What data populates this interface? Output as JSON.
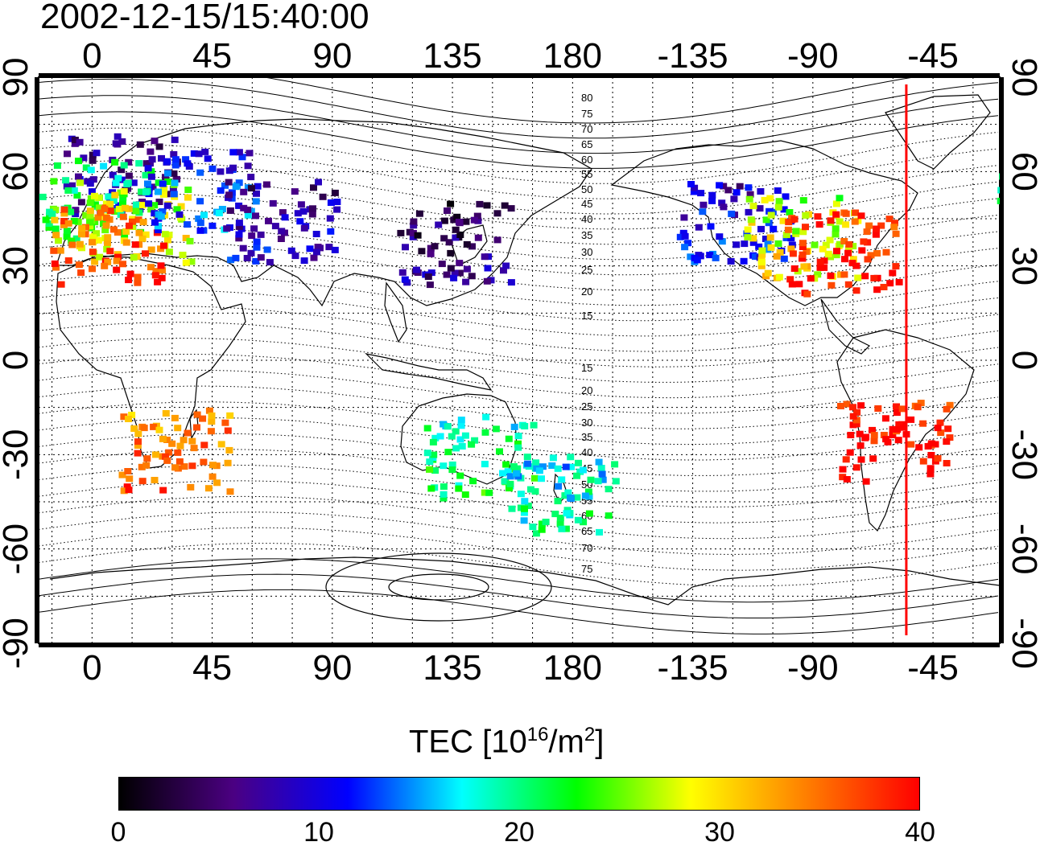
{
  "title": "2002-12-15/15:40:00",
  "map": {
    "top_lon_labels": [
      "0",
      "45",
      "90",
      "135",
      "180",
      "-135",
      "-90",
      "-45"
    ],
    "bottom_lon_labels": [
      "0",
      "45",
      "90",
      "135",
      "180",
      "-135",
      "-90",
      "-45"
    ],
    "lat_labels": [
      "90",
      "60",
      "30",
      "0",
      "-30",
      "-60",
      "-90"
    ],
    "magnetic_lat_labels_north": [
      "80",
      "75",
      "70",
      "65",
      "60",
      "55",
      "50",
      "45",
      "40",
      "35",
      "30",
      "25",
      "20",
      "15"
    ],
    "magnetic_lat_labels_south": [
      "15",
      "20",
      "25",
      "30",
      "35",
      "40",
      "45",
      "50",
      "55",
      "60",
      "65",
      "70",
      "75"
    ],
    "marker_line_lon": -55,
    "marker_line_color": "#ff0000"
  },
  "colorbar": {
    "label": "TEC  [10",
    "label_exp": "16",
    "label_unit": "/m",
    "label_unit_exp": "2",
    "label_close": "]",
    "ticks": [
      "0",
      "10",
      "20",
      "30",
      "40"
    ],
    "range": [
      0,
      40
    ],
    "colors": [
      "#000000",
      "#4b0082",
      "#0000ff",
      "#00ffff",
      "#00ff00",
      "#ffff00",
      "#ff8000",
      "#ff0000"
    ]
  },
  "chart_data": {
    "type": "heatmap",
    "title": "2002-12-15/15:40:00",
    "xlabel": "",
    "ylabel": "",
    "xlim": [
      -20,
      340
    ],
    "ylim": [
      -90,
      90
    ],
    "value_label": "TEC [10^16/m^2]",
    "value_range": [
      0,
      40
    ],
    "regions": [
      {
        "lon": 10,
        "lat": 60,
        "tec": 7
      },
      {
        "lon": 0,
        "lat": 52,
        "tec": 22
      },
      {
        "lon": 15,
        "lat": 45,
        "tec": 28
      },
      {
        "lon": 5,
        "lat": 38,
        "tec": 36
      },
      {
        "lon": 40,
        "lat": 55,
        "tec": 12
      },
      {
        "lon": 70,
        "lat": 45,
        "tec": 8
      },
      {
        "lon": 135,
        "lat": 38,
        "tec": 5
      },
      {
        "lon": -120,
        "lat": 45,
        "tec": 10
      },
      {
        "lon": -95,
        "lat": 40,
        "tec": 28
      },
      {
        "lon": -80,
        "lat": 35,
        "tec": 39
      },
      {
        "lon": -60,
        "lat": -25,
        "tec": 40
      },
      {
        "lon": 145,
        "lat": -30,
        "tec": 20
      },
      {
        "lon": 175,
        "lat": -42,
        "tec": 18
      },
      {
        "lon": 30,
        "lat": -28,
        "tec": 35
      }
    ]
  }
}
